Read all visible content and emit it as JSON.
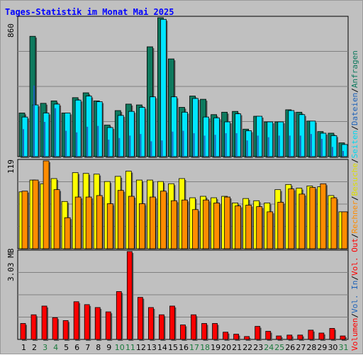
{
  "title": "Tages-Statistik im Monat Mai 2025",
  "colors": {
    "anfragen": "#0e7a5e",
    "dateien": "#1e62b8",
    "seiten": "#00e5ff",
    "besuche": "#ffff00",
    "rechner": "#ff8c00",
    "volumen": "#ff0000",
    "weekend": "#1a7a3c",
    "weekday": "#000000"
  },
  "legend": {
    "top": [
      {
        "label": "Anfragen",
        "color": "#0e7a5e"
      },
      {
        "label": "Dateien",
        "color": "#1e62b8"
      },
      {
        "label": "Seiten",
        "color": "#00d8f0"
      },
      {
        "label": "Besuche",
        "color": "#dddd00"
      }
    ],
    "bottom": [
      {
        "label": "Rechner",
        "color": "#ff8c00"
      },
      {
        "label": "Vol. Out",
        "color": "#ff0000"
      },
      {
        "label": "Vol. In",
        "color": "#1e62b8"
      },
      {
        "label": "Volumen",
        "color": "#ff0000"
      }
    ],
    "separator": "/"
  },
  "chart_data": [
    {
      "type": "bar",
      "name": "anfragen-dateien-seiten",
      "ymax_label": "860",
      "ylim": [
        0,
        860
      ],
      "categories": [
        "1",
        "2",
        "3",
        "4",
        "5",
        "6",
        "7",
        "8",
        "9",
        "10",
        "11",
        "12",
        "13",
        "14",
        "15",
        "16",
        "17",
        "18",
        "19",
        "20",
        "21",
        "22",
        "23",
        "24",
        "25",
        "26",
        "27",
        "28",
        "29",
        "30",
        "31"
      ],
      "weekend": [
        3,
        4,
        10,
        11,
        17,
        18,
        24,
        25,
        31
      ],
      "series": [
        {
          "name": "Anfragen",
          "values": [
            270,
            745,
            330,
            345,
            270,
            365,
            395,
            345,
            195,
            285,
            325,
            320,
            680,
            860,
            605,
            305,
            375,
            355,
            260,
            275,
            280,
            170,
            250,
            215,
            215,
            290,
            275,
            220,
            155,
            145,
            85
          ]
        },
        {
          "name": "Dateien",
          "values": [
            170,
            440,
            215,
            300,
            160,
            150,
            185,
            190,
            105,
            115,
            130,
            140,
            95,
            100,
            155,
            160,
            145,
            130,
            135,
            145,
            145,
            100,
            130,
            120,
            130,
            130,
            130,
            140,
            110,
            60,
            35
          ]
        },
        {
          "name": "Seiten",
          "values": [
            245,
            320,
            270,
            325,
            270,
            350,
            375,
            340,
            180,
            255,
            280,
            305,
            370,
            850,
            370,
            275,
            360,
            245,
            240,
            215,
            265,
            160,
            250,
            215,
            215,
            285,
            260,
            220,
            145,
            130,
            75
          ]
        }
      ]
    },
    {
      "type": "bar",
      "name": "besuche-rechner",
      "ymax_label": "119",
      "ylim": [
        0,
        119
      ],
      "series": [
        {
          "name": "Besuche",
          "values": [
            77,
            93,
            88,
            95,
            64,
            103,
            102,
            101,
            91,
            98,
            105,
            93,
            93,
            91,
            88,
            95,
            69,
            71,
            69,
            71,
            62,
            68,
            65,
            62,
            80,
            87,
            82,
            85,
            84,
            72,
            50
          ]
        },
        {
          "name": "Rechner",
          "values": [
            78,
            93,
            119,
            80,
            42,
            70,
            70,
            72,
            61,
            79,
            71,
            61,
            70,
            78,
            65,
            66,
            53,
            66,
            62,
            70,
            58,
            59,
            57,
            50,
            63,
            81,
            74,
            83,
            88,
            69,
            50
          ]
        }
      ]
    },
    {
      "type": "bar",
      "name": "volumen",
      "ymax_label": "3.03 MB",
      "ylim": [
        0,
        3.03
      ],
      "series": [
        {
          "name": "Volumen",
          "values": [
            0.55,
            0.85,
            1.15,
            0.75,
            0.65,
            1.3,
            1.2,
            1.1,
            0.95,
            1.65,
            3.03,
            1.45,
            1.1,
            0.85,
            1.15,
            0.5,
            0.85,
            0.55,
            0.55,
            0.25,
            0.18,
            0.1,
            0.45,
            0.28,
            0.12,
            0.15,
            0.15,
            0.32,
            0.22,
            0.38,
            0.12
          ]
        }
      ]
    }
  ]
}
